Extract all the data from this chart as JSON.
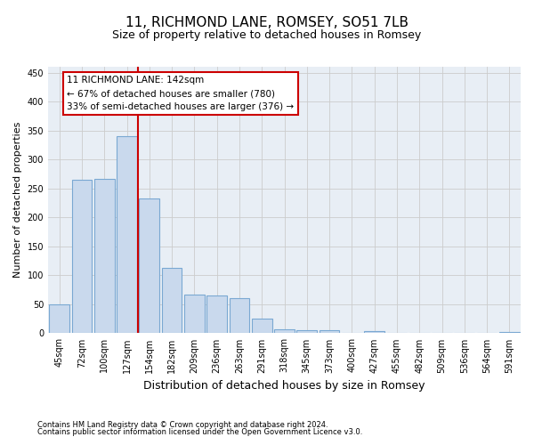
{
  "title": "11, RICHMOND LANE, ROMSEY, SO51 7LB",
  "subtitle": "Size of property relative to detached houses in Romsey",
  "xlabel": "Distribution of detached houses by size in Romsey",
  "ylabel": "Number of detached properties",
  "bar_labels": [
    "45sqm",
    "72sqm",
    "100sqm",
    "127sqm",
    "154sqm",
    "182sqm",
    "209sqm",
    "236sqm",
    "263sqm",
    "291sqm",
    "318sqm",
    "345sqm",
    "373sqm",
    "400sqm",
    "427sqm",
    "455sqm",
    "482sqm",
    "509sqm",
    "536sqm",
    "564sqm",
    "591sqm"
  ],
  "bar_values": [
    50,
    265,
    267,
    340,
    232,
    113,
    67,
    65,
    60,
    25,
    7,
    5,
    5,
    0,
    3,
    0,
    0,
    0,
    0,
    0,
    2
  ],
  "bar_color": "#c9d9ed",
  "bar_edge_color": "#7aa8d2",
  "marker_line_color": "#cc0000",
  "annotation_line1": "11 RICHMOND LANE: 142sqm",
  "annotation_line2": "← 67% of detached houses are smaller (780)",
  "annotation_line3": "33% of semi-detached houses are larger (376) →",
  "annotation_box_color": "#ffffff",
  "annotation_box_edge": "#cc0000",
  "ylim": [
    0,
    460
  ],
  "yticks": [
    0,
    50,
    100,
    150,
    200,
    250,
    300,
    350,
    400,
    450
  ],
  "grid_color": "#cccccc",
  "bg_axes_color": "#e8eef5",
  "background_color": "#ffffff",
  "footnote1": "Contains HM Land Registry data © Crown copyright and database right 2024.",
  "footnote2": "Contains public sector information licensed under the Open Government Licence v3.0.",
  "title_fontsize": 11,
  "subtitle_fontsize": 9,
  "xlabel_fontsize": 9,
  "ylabel_fontsize": 8,
  "tick_fontsize": 7,
  "annot_fontsize": 7.5,
  "footnote_fontsize": 6
}
